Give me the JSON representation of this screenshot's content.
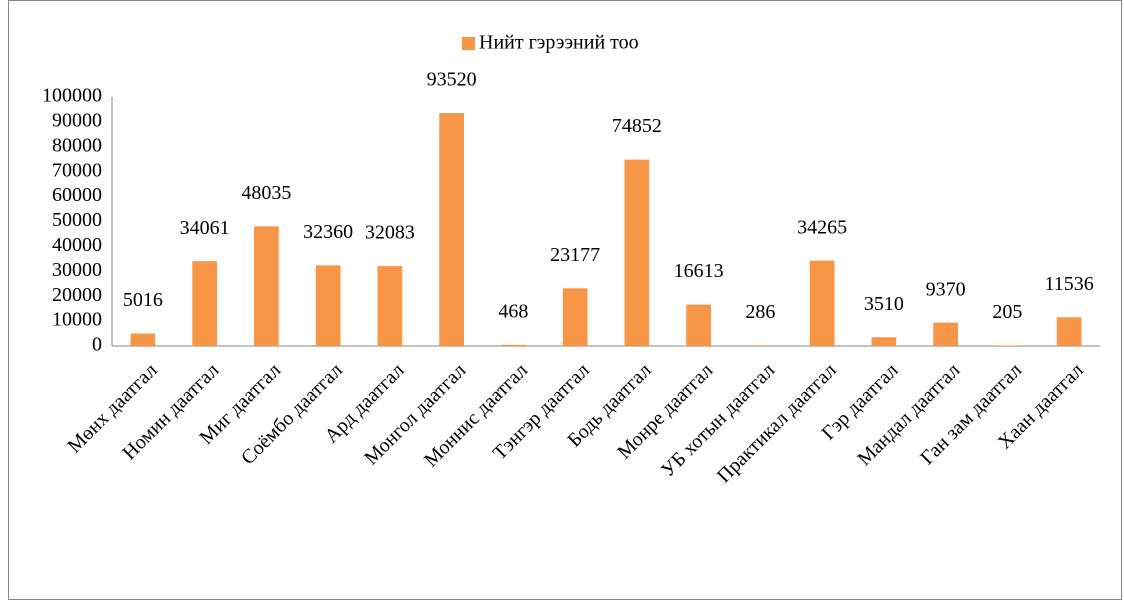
{
  "chart_data": {
    "type": "bar",
    "legend": "Нийт гэрээний тоо",
    "categories": [
      "Мөнх даатгал",
      "Номин даатгал",
      "Миг даатгал",
      "Соёмбо даатгал",
      "Ард даатгал",
      "Монгол даатгал",
      "Моннис даатгал",
      "Тэнгэр даатгал",
      "Бодь даатгал",
      "Монре даатгал",
      "УБ хотын даатгал",
      "Практикал даатгал",
      "Гэр даатгал",
      "Мандал даатгал",
      "Ган зам даатгал",
      "Хаан даатгал"
    ],
    "values": [
      5016,
      34061,
      48035,
      32360,
      32083,
      93520,
      468,
      23177,
      74852,
      16613,
      286,
      34265,
      3510,
      9370,
      205,
      11536
    ],
    "color": "#f79646",
    "ylim": [
      0,
      100000
    ],
    "yticks": [
      0,
      10000,
      20000,
      30000,
      40000,
      50000,
      60000,
      70000,
      80000,
      90000,
      100000
    ],
    "grid": false
  }
}
